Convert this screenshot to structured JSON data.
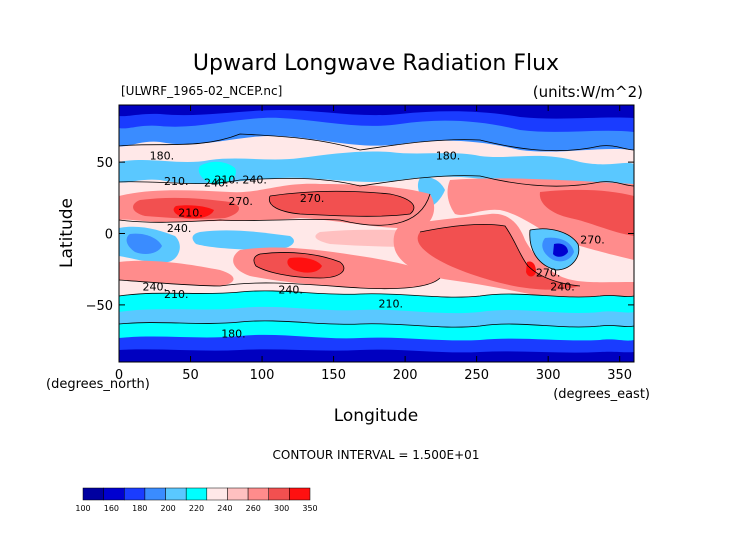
{
  "chart_data": {
    "type": "heatmap",
    "title": "Upward Longwave Radiation Flux",
    "file_label": "[ULWRF_1965-02_NCEP.nc]",
    "units_label": "(units:W/m^2)",
    "xlabel": "Longitude",
    "ylabel": "Latitude",
    "x_unit_label": "(degrees_east)",
    "y_unit_label": "(degrees_north)",
    "xlim": [
      0,
      360
    ],
    "ylim": [
      -90,
      90
    ],
    "x_ticks": [
      0,
      50,
      100,
      150,
      200,
      250,
      300,
      350
    ],
    "x_tick_labels": [
      "0",
      "50",
      "100",
      "150",
      "200",
      "250",
      "300",
      "350"
    ],
    "y_ticks": [
      50,
      0,
      -50
    ],
    "y_tick_labels": [
      "50",
      "0",
      "−50"
    ],
    "contour_interval_text": "CONTOUR INTERVAL = 1.500E+01",
    "contour_labels": [
      {
        "lon": 30,
        "lat": 52,
        "text": "180."
      },
      {
        "lon": 40,
        "lat": 34,
        "text": "210."
      },
      {
        "lon": 68,
        "lat": 33,
        "text": "240."
      },
      {
        "lon": 85,
        "lat": 35,
        "text": "210. 240."
      },
      {
        "lon": 42,
        "lat": 1,
        "text": "240."
      },
      {
        "lon": 50,
        "lat": 12,
        "text": "210."
      },
      {
        "lon": 85,
        "lat": 20,
        "text": "270."
      },
      {
        "lon": 135,
        "lat": 22,
        "text": "270."
      },
      {
        "lon": 25,
        "lat": -40,
        "text": "240."
      },
      {
        "lon": 40,
        "lat": -45,
        "text": "210."
      },
      {
        "lon": 80,
        "lat": -73,
        "text": "180."
      },
      {
        "lon": 120,
        "lat": -42,
        "text": "240."
      },
      {
        "lon": 190,
        "lat": -52,
        "text": "210."
      },
      {
        "lon": 230,
        "lat": 52,
        "text": "180."
      },
      {
        "lon": 300,
        "lat": -30,
        "text": "270."
      },
      {
        "lon": 310,
        "lat": -40,
        "text": "240."
      },
      {
        "lon": 331,
        "lat": -7,
        "text": "270."
      }
    ],
    "colorbar": {
      "colors": [
        "#0000a0",
        "#0000d0",
        "#1a3cff",
        "#3a8cff",
        "#5ac8ff",
        "#00ffff",
        "#ffe8e8",
        "#ffc0c0",
        "#ff8c8c",
        "#f25050",
        "#ff1010"
      ],
      "labels": [
        "100",
        "160",
        "180",
        "200",
        "220",
        "240",
        "260",
        "300",
        "350"
      ]
    }
  }
}
